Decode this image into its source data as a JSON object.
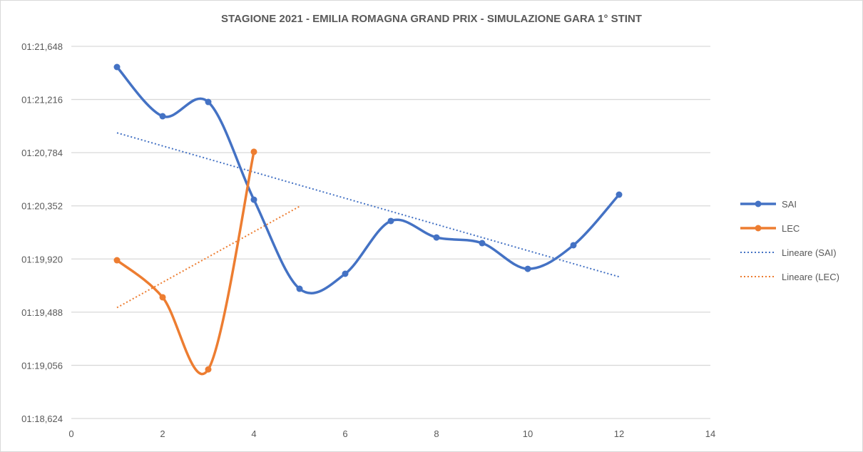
{
  "chart_data": {
    "type": "line",
    "title": "STAGIONE 2021 - EMILIA ROMAGNA GRAND PRIX - SIMULAZIONE GARA 1° STINT",
    "xlabel": "",
    "ylabel": "",
    "xlim": [
      0,
      14
    ],
    "x_ticks": [
      "0",
      "2",
      "4",
      "6",
      "8",
      "10",
      "12",
      "14"
    ],
    "ylim": [
      "01:18,624",
      "01:21,648"
    ],
    "y_ticks": [
      "01:18,624",
      "01:19,056",
      "01:19,488",
      "01:19,920",
      "01:20,352",
      "01:20,784",
      "01:21,216",
      "01:21,648"
    ],
    "grid": "horizontal",
    "legend_position": "right",
    "series": [
      {
        "name": "SAI",
        "color": "#4472c4",
        "smooth": true,
        "markers": true,
        "x": [
          1,
          2,
          3,
          4,
          5,
          6,
          7,
          8,
          9,
          10,
          11,
          12
        ],
        "y": [
          "01:21,480",
          "01:21,080",
          "01:21,196",
          "01:20,402",
          "01:19,678",
          "01:19,800",
          "01:20,229",
          "01:20,095",
          "01:20,049",
          "01:19,840",
          "01:20,032",
          "01:20,443"
        ]
      },
      {
        "name": "LEC",
        "color": "#ed7d31",
        "smooth": true,
        "markers": true,
        "x": [
          1,
          2,
          3,
          4
        ],
        "y": [
          "01:19,910",
          "01:19,609",
          "01:19,023",
          "01:20,791"
        ]
      }
    ],
    "trendlines": [
      {
        "name": "Lineare (SAI)",
        "of": "SAI",
        "type": "linear",
        "color": "#4472c4",
        "style": "dotted",
        "x_range": [
          1,
          12
        ]
      },
      {
        "name": "Lineare (LEC)",
        "of": "LEC",
        "type": "linear",
        "color": "#ed7d31",
        "style": "dotted",
        "x_range": [
          1,
          5
        ]
      }
    ]
  }
}
